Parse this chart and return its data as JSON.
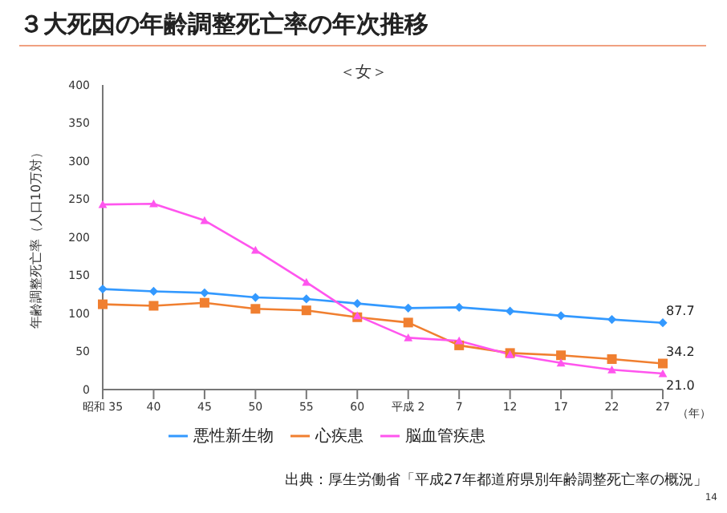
{
  "chart_data": {
    "type": "line",
    "title": "３大死因の年齢調整死亡率の年次推移",
    "subtitle": "＜女＞",
    "xlabel": "（年）",
    "ylabel": "年齢調整死亡率（人口10万対）",
    "annotations": [
      "出典：厚生労働省「平成27年都道府県別年齢調整死亡率の概況」",
      "14"
    ],
    "categories": [
      "昭和 35",
      "40",
      "45",
      "50",
      "55",
      "60",
      "平成 2",
      "7",
      "12",
      "17",
      "22",
      "27"
    ],
    "series": [
      {
        "name": "悪性新生物",
        "color": "#3399ff",
        "marker": "diamond",
        "values": [
          132,
          129,
          127,
          121,
          119,
          113,
          107,
          108,
          103,
          97,
          92,
          87.7
        ],
        "value_labels": [
          null,
          null,
          null,
          null,
          null,
          null,
          null,
          null,
          null,
          null,
          null,
          "87.7"
        ]
      },
      {
        "name": "心疾患",
        "color": "#f07f30",
        "marker": "square",
        "values": [
          112,
          110,
          114,
          106,
          104,
          95,
          88,
          58,
          48,
          45,
          40,
          34.2
        ],
        "value_labels": [
          null,
          null,
          null,
          null,
          null,
          null,
          null,
          null,
          null,
          null,
          null,
          "34.2"
        ]
      },
      {
        "name": "脳血管疾患",
        "color": "#ff55ee",
        "marker": "triangle",
        "values": [
          243,
          244,
          222,
          183,
          141,
          97,
          68,
          64,
          46,
          35,
          26,
          21.0
        ],
        "value_labels": [
          null,
          null,
          null,
          null,
          null,
          null,
          null,
          null,
          null,
          null,
          null,
          "21.0"
        ]
      }
    ],
    "ylim": [
      0,
      400
    ],
    "yticks": [
      0,
      50,
      100,
      150,
      200,
      250,
      300,
      350,
      400
    ],
    "grid": false,
    "legend": "bottom",
    "line_style": "solid"
  }
}
